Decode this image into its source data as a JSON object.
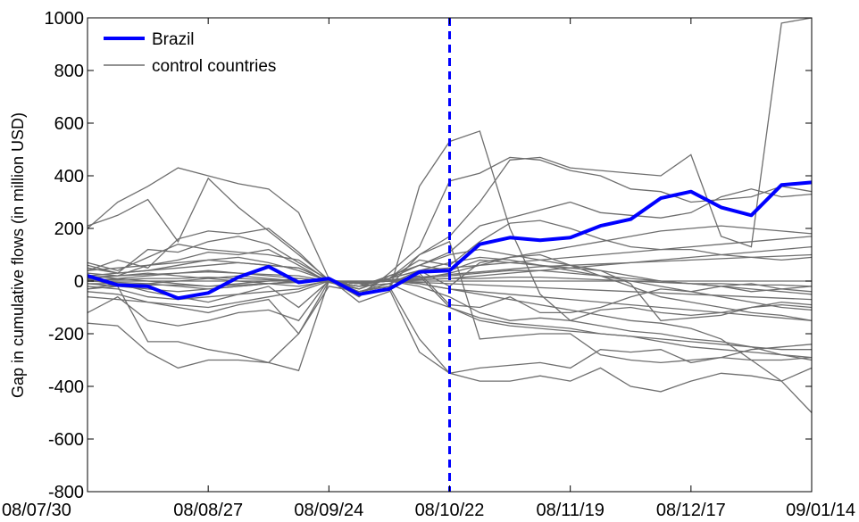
{
  "chart_data": {
    "type": "line",
    "ylabel": "Gap in cumulative flows (in million USD)",
    "xlabel": "",
    "ylim": [
      -800,
      1000
    ],
    "yticks": [
      -800,
      -600,
      -400,
      -200,
      0,
      200,
      400,
      600,
      800,
      1000
    ],
    "x_tick_labels": [
      "08/07/30",
      "08/08/27",
      "08/09/24",
      "08/10/22",
      "08/11/19",
      "08/12/17",
      "09/01/14"
    ],
    "x_tick_index": [
      0,
      4,
      8,
      12,
      16,
      20,
      24
    ],
    "x": [
      "08/07/30",
      "08/08/06",
      "08/08/13",
      "08/08/20",
      "08/08/27",
      "08/09/03",
      "08/09/10",
      "08/09/17",
      "08/09/24",
      "08/10/01",
      "08/10/08",
      "08/10/15",
      "08/10/22",
      "08/10/29",
      "08/11/05",
      "08/11/12",
      "08/11/19",
      "08/11/26",
      "08/12/03",
      "08/12/10",
      "08/12/17",
      "08/12/24",
      "08/12/31",
      "09/01/07",
      "09/01/14"
    ],
    "vertical_line": {
      "x_index": 12,
      "style": "dashed",
      "color": "#0000ff"
    },
    "legend": {
      "position": "top-left",
      "entries": [
        "Brazil",
        "control countries"
      ]
    },
    "colors": {
      "treated": "#0000ff",
      "control": "#6e6e6e",
      "axis": "#000000"
    },
    "series": [
      {
        "name": "Brazil",
        "role": "treated",
        "values": [
          20,
          -15,
          -20,
          -65,
          -45,
          15,
          55,
          -5,
          10,
          -50,
          -30,
          35,
          40,
          140,
          165,
          155,
          165,
          210,
          235,
          315,
          340,
          280,
          250,
          365,
          375
        ]
      },
      {
        "role": "control",
        "values": [
          200,
          300,
          360,
          430,
          400,
          370,
          350,
          260,
          10,
          -80,
          -40,
          360,
          530,
          570,
          200,
          -50,
          -150,
          -110,
          -100,
          -120,
          -130,
          -120,
          -100,
          -90,
          -100
        ]
      },
      {
        "role": "control",
        "values": [
          210,
          250,
          310,
          150,
          390,
          280,
          190,
          100,
          5,
          -60,
          30,
          130,
          380,
          410,
          470,
          460,
          420,
          400,
          350,
          340,
          300,
          310,
          320,
          360,
          340
        ]
      },
      {
        "role": "control",
        "values": [
          60,
          30,
          120,
          110,
          150,
          170,
          140,
          70,
          5,
          -30,
          10,
          100,
          170,
          300,
          460,
          470,
          430,
          420,
          410,
          400,
          480,
          170,
          130,
          980,
          1000
        ]
      },
      {
        "role": "control",
        "values": [
          40,
          80,
          50,
          160,
          190,
          180,
          200,
          110,
          0,
          -50,
          20,
          60,
          110,
          210,
          240,
          270,
          300,
          260,
          250,
          240,
          260,
          320,
          350,
          320,
          330
        ]
      },
      {
        "role": "control",
        "values": [
          -30,
          -10,
          -40,
          -60,
          -80,
          -50,
          -20,
          -100,
          0,
          -20,
          -10,
          40,
          -20,
          70,
          90,
          100,
          60,
          40,
          -10,
          -150,
          -140,
          -130,
          -100,
          -80,
          -90
        ]
      },
      {
        "role": "control",
        "values": [
          -120,
          -60,
          -150,
          -170,
          -150,
          -120,
          -110,
          -150,
          5,
          -40,
          -20,
          -220,
          -350,
          -380,
          -380,
          -360,
          -380,
          -330,
          -400,
          -420,
          -380,
          -350,
          -360,
          -380,
          -330
        ]
      },
      {
        "role": "control",
        "values": [
          -160,
          -170,
          -270,
          -330,
          -300,
          -300,
          -310,
          -200,
          0,
          -10,
          -30,
          -270,
          -350,
          -330,
          -320,
          -310,
          -330,
          -260,
          -270,
          -260,
          -310,
          -290,
          -260,
          -250,
          -240
        ]
      },
      {
        "role": "control",
        "values": [
          10,
          -20,
          -230,
          -230,
          -260,
          -280,
          -310,
          -340,
          0,
          -40,
          -20,
          100,
          150,
          -220,
          -210,
          -200,
          -200,
          -280,
          -300,
          -310,
          -300,
          -290,
          -300,
          -300,
          -290
        ]
      },
      {
        "role": "control",
        "values": [
          -40,
          -50,
          -80,
          -100,
          -120,
          -90,
          -70,
          -200,
          -20,
          -40,
          -10,
          30,
          -90,
          -100,
          -60,
          -120,
          -120,
          -100,
          -60,
          -30,
          -40,
          -20,
          -10,
          -30,
          -20
        ]
      },
      {
        "role": "control",
        "values": [
          70,
          40,
          90,
          140,
          120,
          110,
          100,
          80,
          0,
          -20,
          20,
          60,
          40,
          80,
          70,
          60,
          50,
          40,
          20,
          0,
          -10,
          -20,
          -40,
          -30,
          -40
        ]
      },
      {
        "role": "control",
        "values": [
          30,
          20,
          60,
          80,
          110,
          100,
          120,
          60,
          -5,
          -30,
          10,
          80,
          60,
          150,
          220,
          230,
          200,
          160,
          130,
          120,
          120,
          100,
          90,
          80,
          90
        ]
      },
      {
        "role": "control",
        "values": [
          -20,
          -30,
          -60,
          -70,
          -60,
          -50,
          -40,
          -30,
          5,
          -10,
          0,
          -20,
          -60,
          -120,
          -150,
          -140,
          -150,
          -170,
          -190,
          -200,
          -220,
          -230,
          -250,
          -280,
          -300
        ]
      },
      {
        "role": "control",
        "values": [
          0,
          10,
          20,
          30,
          40,
          30,
          20,
          10,
          0,
          -10,
          0,
          10,
          20,
          30,
          40,
          40,
          30,
          20,
          10,
          0,
          -10,
          -20,
          -30,
          -40,
          -50
        ]
      },
      {
        "role": "control",
        "values": [
          50,
          30,
          40,
          60,
          80,
          90,
          70,
          40,
          0,
          -20,
          10,
          60,
          100,
          120,
          100,
          80,
          60,
          20,
          -20,
          -60,
          -80,
          -100,
          -120,
          -130,
          -150
        ]
      },
      {
        "role": "control",
        "values": [
          -10,
          -20,
          -30,
          -40,
          -30,
          -20,
          -10,
          0,
          0,
          -5,
          0,
          -10,
          -30,
          -50,
          -70,
          -90,
          -110,
          -130,
          -150,
          -160,
          -180,
          -220,
          -300,
          -380,
          -500
        ]
      },
      {
        "role": "control",
        "values": [
          20,
          10,
          0,
          -10,
          -20,
          -10,
          0,
          10,
          0,
          -5,
          0,
          20,
          -100,
          -150,
          -170,
          -180,
          -190,
          -200,
          -210,
          -220,
          -230,
          -240,
          -250,
          -260,
          -260
        ]
      },
      {
        "role": "control",
        "values": [
          -60,
          -70,
          -80,
          -90,
          -100,
          -80,
          -60,
          -40,
          0,
          -20,
          -10,
          -60,
          -100,
          -140,
          -160,
          -170,
          -180,
          -200,
          -210,
          -230,
          -250,
          -260,
          -270,
          -280,
          -290
        ]
      },
      {
        "role": "control",
        "values": [
          40,
          50,
          60,
          70,
          80,
          70,
          60,
          50,
          0,
          -10,
          10,
          40,
          70,
          90,
          80,
          60,
          40,
          20,
          0,
          -20,
          -40,
          -60,
          -80,
          -100,
          -110
        ]
      },
      {
        "role": "control",
        "values": [
          0,
          -5,
          -10,
          -20,
          -30,
          -20,
          -10,
          0,
          0,
          -5,
          0,
          5,
          10,
          20,
          30,
          40,
          50,
          60,
          70,
          80,
          90,
          100,
          110,
          120,
          130
        ]
      },
      {
        "role": "control",
        "values": [
          10,
          20,
          30,
          20,
          10,
          0,
          -10,
          -20,
          0,
          -10,
          0,
          10,
          30,
          60,
          90,
          110,
          130,
          150,
          170,
          190,
          200,
          210,
          200,
          190,
          180
        ]
      },
      {
        "role": "control",
        "values": [
          -30,
          -20,
          -10,
          0,
          10,
          20,
          10,
          0,
          0,
          -10,
          0,
          -10,
          -30,
          -40,
          -50,
          -60,
          -70,
          -80,
          -90,
          -100,
          -110,
          -120,
          -130,
          -140,
          -150
        ]
      },
      {
        "role": "control",
        "values": [
          20,
          30,
          40,
          50,
          60,
          70,
          60,
          50,
          0,
          -10,
          10,
          40,
          50,
          60,
          70,
          80,
          90,
          100,
          110,
          120,
          130,
          140,
          150,
          160,
          170
        ]
      },
      {
        "role": "control",
        "values": [
          0,
          0,
          0,
          0,
          0,
          0,
          0,
          0,
          0,
          0,
          0,
          0,
          0,
          0,
          0,
          0,
          0,
          0,
          0,
          0,
          0,
          0,
          0,
          0,
          0
        ]
      },
      {
        "role": "control",
        "values": [
          5,
          5,
          10,
          10,
          15,
          10,
          5,
          0,
          0,
          -5,
          0,
          5,
          10,
          10,
          15,
          15,
          10,
          5,
          0,
          -5,
          -10,
          -10,
          -15,
          -15,
          -20
        ]
      },
      {
        "role": "control",
        "values": [
          -10,
          -10,
          -15,
          -15,
          -20,
          -15,
          -10,
          -5,
          0,
          0,
          0,
          -5,
          -10,
          -15,
          -20,
          -25,
          -30,
          -35,
          -40,
          -45,
          -50,
          -55,
          -60,
          -65,
          -70
        ]
      },
      {
        "role": "control",
        "values": [
          15,
          20,
          25,
          30,
          35,
          30,
          25,
          20,
          0,
          -5,
          5,
          15,
          25,
          35,
          45,
          55,
          60,
          65,
          70,
          75,
          80,
          85,
          90,
          95,
          100
        ]
      }
    ]
  }
}
